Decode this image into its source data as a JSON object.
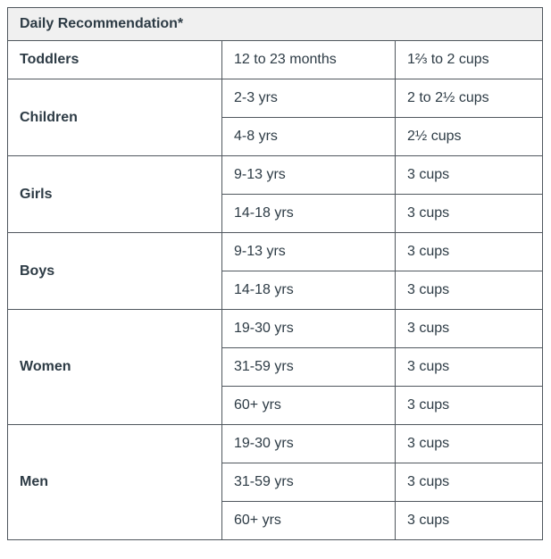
{
  "table": {
    "title": "Daily Recommendation*",
    "columns": [
      "group",
      "age_range",
      "amount"
    ],
    "groups": [
      {
        "label": "Toddlers",
        "rows": [
          {
            "age": "12 to 23 months",
            "amount": "1⅔ to 2 cups"
          }
        ]
      },
      {
        "label": "Children",
        "rows": [
          {
            "age": "2-3 yrs",
            "amount": "2 to 2½ cups"
          },
          {
            "age": "4-8 yrs",
            "amount": "2½ cups"
          }
        ]
      },
      {
        "label": "Girls",
        "rows": [
          {
            "age": "9-13 yrs",
            "amount": "3 cups"
          },
          {
            "age": "14-18 yrs",
            "amount": "3 cups"
          }
        ]
      },
      {
        "label": "Boys",
        "rows": [
          {
            "age": "9-13 yrs",
            "amount": "3 cups"
          },
          {
            "age": "14-18 yrs",
            "amount": "3 cups"
          }
        ]
      },
      {
        "label": "Women",
        "rows": [
          {
            "age": "19-30 yrs",
            "amount": "3 cups"
          },
          {
            "age": "31-59 yrs",
            "amount": "3 cups"
          },
          {
            "age": "60+ yrs",
            "amount": "3 cups"
          }
        ]
      },
      {
        "label": "Men",
        "rows": [
          {
            "age": "19-30 yrs",
            "amount": "3 cups"
          },
          {
            "age": "31-59 yrs",
            "amount": "3 cups"
          },
          {
            "age": "60+ yrs",
            "amount": "3 cups"
          }
        ]
      }
    ]
  },
  "colors": {
    "text": "#2d3b45",
    "border": "#50575e",
    "header_bg": "#f0f0f0",
    "body_bg": "#ffffff"
  }
}
